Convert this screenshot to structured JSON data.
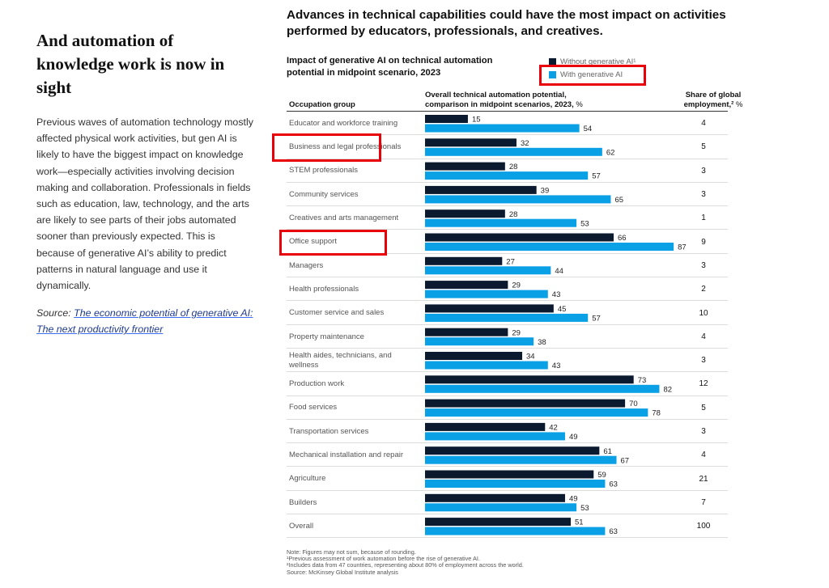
{
  "left": {
    "title": "And automation of knowledge work is now in sight",
    "body": "Previous waves of automation technology mostly affected physical work activities, but gen AI is likely to have the biggest impact on knowledge work—especially activities involving decision making and collaboration. Professionals in fields such as education, law, technology, and the arts are likely to see parts of their jobs automated sooner than previously expected. This is because of generative AI’s ability to predict patterns in natural language and use it dynamically.",
    "source_prefix": "Source: ",
    "source_link": "The economic potential of generative AI: The next productivity frontier"
  },
  "colors": {
    "without": "#0b1a2e",
    "with": "#0aa0e6",
    "highlight": "#e8000b"
  },
  "chart_data": {
    "type": "bar",
    "orientation": "horizontal",
    "title": "Advances in technical capabilities could have the most impact on activities performed by educators, professionals, and creatives.",
    "subtitle": "Impact of generative AI on technical automation potential in midpoint scenario, 2023",
    "legend": [
      "Without generative AI¹",
      "With generative AI"
    ],
    "column_headers": {
      "group": "Occupation group",
      "potential_bold": "Overall technical automation potential, comparison in midpoint scenarios, 2023,",
      "potential_unit": " %",
      "share_bold": "Share of global employment,²",
      "share_unit": " %"
    },
    "xlim": [
      0,
      100
    ],
    "categories": [
      "Educator and workforce training",
      "Business and legal professionals",
      "STEM professionals",
      "Community services",
      "Creatives and arts management",
      "Office support",
      "Managers",
      "Health professionals",
      "Customer service and sales",
      "Property maintenance",
      "Health aides, technicians, and wellness",
      "Production work",
      "Food services",
      "Transportation services",
      "Mechanical installation and repair",
      "Agriculture",
      "Builders",
      "Overall"
    ],
    "series": [
      {
        "name": "Without generative AI¹",
        "values": [
          15,
          32,
          28,
          39,
          28,
          66,
          27,
          29,
          45,
          29,
          34,
          73,
          70,
          42,
          61,
          59,
          49,
          51
        ]
      },
      {
        "name": "With generative AI",
        "values": [
          54,
          62,
          57,
          65,
          53,
          87,
          44,
          43,
          57,
          38,
          43,
          82,
          78,
          49,
          67,
          63,
          53,
          63
        ]
      }
    ],
    "share_of_global_employment": [
      4,
      5,
      3,
      3,
      1,
      9,
      3,
      2,
      10,
      4,
      3,
      12,
      5,
      3,
      4,
      21,
      7,
      100
    ],
    "notes": [
      "Note: Figures may not sum, because of rounding.",
      "¹Previous assessment of work automation before the rise of generative AI.",
      "²Includes data from 47 countries, representing about 80% of employment across the world.",
      " Source: McKinsey Global Institute analysis"
    ]
  }
}
